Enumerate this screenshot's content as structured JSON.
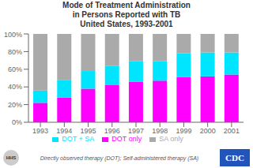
{
  "chart_data": {
    "type": "bar",
    "title": "Mode of Treatment Administration\nin Persons Reported with TB\nUnited States, 1993-2001",
    "categories": [
      "1993",
      "1994",
      "1995",
      "1996",
      "1997",
      "1998",
      "1999",
      "2000",
      "2001"
    ],
    "series": [
      {
        "name": "DOT only",
        "color": "#ff00ff",
        "values": [
          22,
          28,
          38,
          42,
          46,
          47,
          51,
          52,
          54
        ]
      },
      {
        "name": "DOT + SA",
        "color": "#00e5ff",
        "values": [
          14,
          20,
          20,
          22,
          23,
          22,
          27,
          27,
          25
        ]
      },
      {
        "name": "SA only",
        "color": "#aaaaaa",
        "values": [
          64,
          52,
          42,
          36,
          31,
          31,
          22,
          21,
          21
        ]
      }
    ],
    "stacked": true,
    "ylim": [
      0,
      100
    ],
    "yticks": [
      {
        "value": 0,
        "label": "0%"
      },
      {
        "value": 20,
        "label": "20%"
      },
      {
        "value": 40,
        "label": "40%"
      },
      {
        "value": 60,
        "label": "60%"
      },
      {
        "value": 80,
        "label": "80%"
      },
      {
        "value": 100,
        "label": "100%"
      }
    ],
    "grid": false,
    "legend": "bottom",
    "annotations": [
      "Directly observed therapy (DOT); Self-administered therapy (SA)",
      "HHS",
      "CDC"
    ]
  }
}
